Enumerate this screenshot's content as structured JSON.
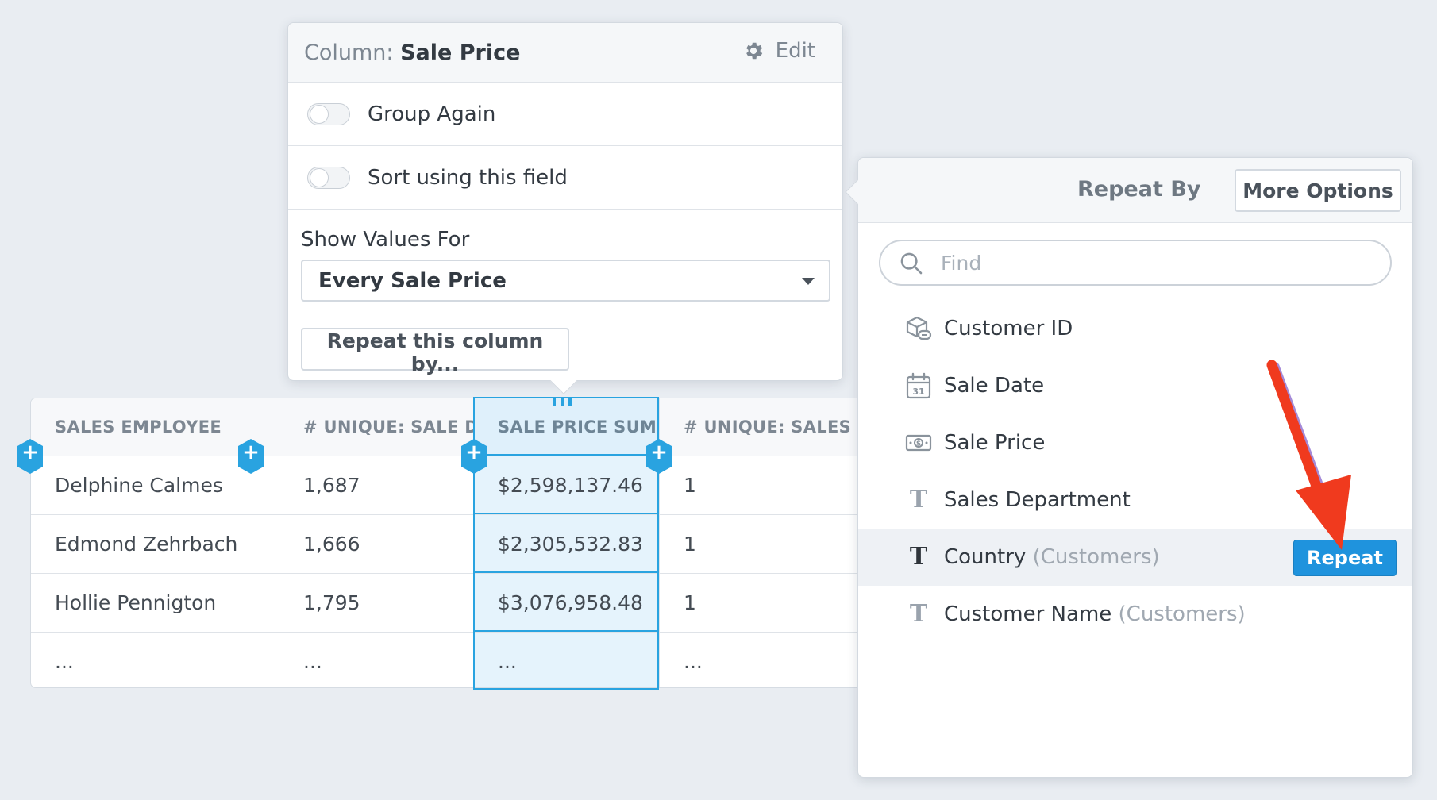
{
  "table": {
    "columns": [
      {
        "header": "SALES EMPLOYEE",
        "cells": [
          "Delphine Calmes",
          "Edmond Zehrbach",
          "Hollie Pennigton",
          "..."
        ]
      },
      {
        "header": "# UNIQUE: SALE DATE",
        "cells": [
          "1,687",
          "1,666",
          "1,795",
          "..."
        ]
      },
      {
        "header": "SALE PRICE SUM",
        "cells": [
          "$2,598,137.46",
          "$2,305,532.83",
          "$3,076,958.48",
          "..."
        ],
        "selected": true
      },
      {
        "header": "# UNIQUE: SALES DEP",
        "cells": [
          "1",
          "1",
          "1",
          "..."
        ]
      }
    ]
  },
  "column_popover": {
    "title_prefix": "Column:",
    "title_value": "Sale Price",
    "edit_label": "Edit",
    "toggles": [
      {
        "label": "Group Again",
        "on": false
      },
      {
        "label": "Sort using this field",
        "on": false
      }
    ],
    "show_values_label": "Show Values For",
    "show_values_selected": "Every Sale Price",
    "repeat_button": "Repeat this column by..."
  },
  "repeat_panel": {
    "title": "Repeat By",
    "more_options": "More Options",
    "search_placeholder": "Find",
    "fields": [
      {
        "name": "Customer ID",
        "source": "",
        "icon": "linked-record-icon"
      },
      {
        "name": "Sale Date",
        "source": "",
        "icon": "calendar-icon"
      },
      {
        "name": "Sale Price",
        "source": "",
        "icon": "currency-icon"
      },
      {
        "name": "Sales Department",
        "source": "",
        "icon": "text-type-icon"
      },
      {
        "name": "Country",
        "source": "(Customers)",
        "icon": "text-type-icon",
        "hovered": true,
        "action": "Repeat"
      },
      {
        "name": "Customer Name",
        "source": "(Customers)",
        "icon": "text-type-icon"
      }
    ]
  },
  "colors": {
    "accent": "#29a3e0",
    "button_blue": "#1f93dd",
    "annotation_arrow": "#f03a1e",
    "background": "#e9edf2"
  }
}
